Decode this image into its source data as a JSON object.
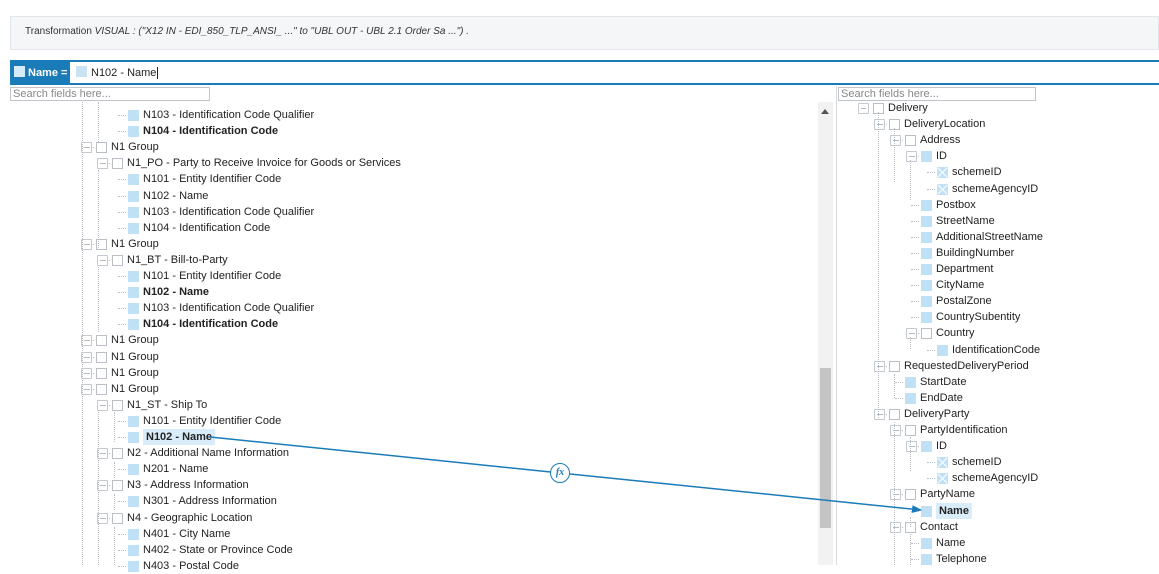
{
  "header": {
    "prefix": "Transformation",
    "visual": "VISUAL : (\"X12 IN - EDI_850_TLP_ANSI_ ...\" to \"UBL OUT - UBL 2.1 Order Sa ...\") ."
  },
  "mapping": {
    "target_label": "Name =",
    "expression": "N102 - Name"
  },
  "left_search": {
    "placeholder": "Search fields here..."
  },
  "right_search": {
    "placeholder": "Search fields here..."
  },
  "function_badge": {
    "label": "fx"
  },
  "colors": {
    "accent": "#1a7bb9",
    "field_icon": "#bfe0f5",
    "highlight": "#d9ecf9"
  },
  "left_tree": [
    {
      "label": "N103 - Identification Code Qualifier",
      "level": 4,
      "icon": "field"
    },
    {
      "label": "N104 - Identification Code",
      "level": 4,
      "icon": "field",
      "bold": true
    },
    {
      "label": "N1 Group",
      "level": 2,
      "icon": "folder",
      "expanded": true
    },
    {
      "label": "N1_PO - Party to Receive Invoice for Goods or Services",
      "level": 3,
      "icon": "folder",
      "expanded": true
    },
    {
      "label": "N101 - Entity Identifier Code",
      "level": 4,
      "icon": "field"
    },
    {
      "label": "N102 - Name",
      "level": 4,
      "icon": "field"
    },
    {
      "label": "N103 - Identification Code Qualifier",
      "level": 4,
      "icon": "field"
    },
    {
      "label": "N104 - Identification Code",
      "level": 4,
      "icon": "field"
    },
    {
      "label": "N1 Group",
      "level": 2,
      "icon": "folder",
      "expanded": true
    },
    {
      "label": "N1_BT - Bill-to-Party",
      "level": 3,
      "icon": "folder",
      "expanded": true
    },
    {
      "label": "N101 - Entity Identifier Code",
      "level": 4,
      "icon": "field"
    },
    {
      "label": "N102 - Name",
      "level": 4,
      "icon": "field",
      "bold": true
    },
    {
      "label": "N103 - Identification Code Qualifier",
      "level": 4,
      "icon": "field"
    },
    {
      "label": "N104 - Identification Code",
      "level": 4,
      "icon": "field",
      "bold": true
    },
    {
      "label": "N1 Group",
      "level": 2,
      "icon": "folder",
      "expanded": false
    },
    {
      "label": "N1 Group",
      "level": 2,
      "icon": "folder",
      "expanded": false
    },
    {
      "label": "N1 Group",
      "level": 2,
      "icon": "folder",
      "expanded": false
    },
    {
      "label": "N1 Group",
      "level": 2,
      "icon": "folder",
      "expanded": true
    },
    {
      "label": "N1_ST - Ship To",
      "level": 3,
      "icon": "folder",
      "expanded": true
    },
    {
      "label": "N101 - Entity Identifier Code",
      "level": 4,
      "icon": "field"
    },
    {
      "label": "N102 - Name",
      "level": 4,
      "icon": "field",
      "bold": true,
      "highlight": true
    },
    {
      "label": "N2 - Additional Name Information",
      "level": 3,
      "icon": "folder",
      "expanded": true
    },
    {
      "label": "N201 - Name",
      "level": 4,
      "icon": "field"
    },
    {
      "label": "N3 - Address Information",
      "level": 3,
      "icon": "folder",
      "expanded": true
    },
    {
      "label": "N301 - Address Information",
      "level": 4,
      "icon": "field"
    },
    {
      "label": "N4 - Geographic Location",
      "level": 3,
      "icon": "folder",
      "expanded": true
    },
    {
      "label": "N401 - City Name",
      "level": 4,
      "icon": "field"
    },
    {
      "label": "N402 - State or Province Code",
      "level": 4,
      "icon": "field"
    },
    {
      "label": "N403 - Postal Code",
      "level": 4,
      "icon": "field"
    }
  ],
  "right_tree": [
    {
      "label": "Delivery",
      "level": 0,
      "icon": "folder",
      "expanded": true
    },
    {
      "label": "DeliveryLocation",
      "level": 1,
      "icon": "folder",
      "expanded": true
    },
    {
      "label": "Address",
      "level": 2,
      "icon": "folder",
      "expanded": true
    },
    {
      "label": "ID",
      "level": 3,
      "icon": "field",
      "expanded": true
    },
    {
      "label": "schemeID",
      "level": 4,
      "icon": "attr"
    },
    {
      "label": "schemeAgencyID",
      "level": 4,
      "icon": "attr"
    },
    {
      "label": "Postbox",
      "level": 3,
      "icon": "field"
    },
    {
      "label": "StreetName",
      "level": 3,
      "icon": "field"
    },
    {
      "label": "AdditionalStreetName",
      "level": 3,
      "icon": "field"
    },
    {
      "label": "BuildingNumber",
      "level": 3,
      "icon": "field"
    },
    {
      "label": "Department",
      "level": 3,
      "icon": "field"
    },
    {
      "label": "CityName",
      "level": 3,
      "icon": "field"
    },
    {
      "label": "PostalZone",
      "level": 3,
      "icon": "field"
    },
    {
      "label": "CountrySubentity",
      "level": 3,
      "icon": "field"
    },
    {
      "label": "Country",
      "level": 3,
      "icon": "folder",
      "expanded": true
    },
    {
      "label": "IdentificationCode",
      "level": 4,
      "icon": "field"
    },
    {
      "label": "RequestedDeliveryPeriod",
      "level": 1,
      "icon": "folder",
      "expanded": true
    },
    {
      "label": "StartDate",
      "level": 2,
      "icon": "field"
    },
    {
      "label": "EndDate",
      "level": 2,
      "icon": "field"
    },
    {
      "label": "DeliveryParty",
      "level": 1,
      "icon": "folder",
      "expanded": true
    },
    {
      "label": "PartyIdentification",
      "level": 2,
      "icon": "folder",
      "expanded": true
    },
    {
      "label": "ID",
      "level": 3,
      "icon": "field",
      "expanded": true
    },
    {
      "label": "schemeID",
      "level": 4,
      "icon": "attr"
    },
    {
      "label": "schemeAgencyID",
      "level": 4,
      "icon": "attr"
    },
    {
      "label": "PartyName",
      "level": 2,
      "icon": "folder",
      "expanded": true
    },
    {
      "label": "Name",
      "level": 3,
      "icon": "field",
      "bold": true,
      "highlight": true
    },
    {
      "label": "Contact",
      "level": 2,
      "icon": "folder",
      "expanded": true
    },
    {
      "label": "Name",
      "level": 3,
      "icon": "field"
    },
    {
      "label": "Telephone",
      "level": 3,
      "icon": "field"
    }
  ]
}
